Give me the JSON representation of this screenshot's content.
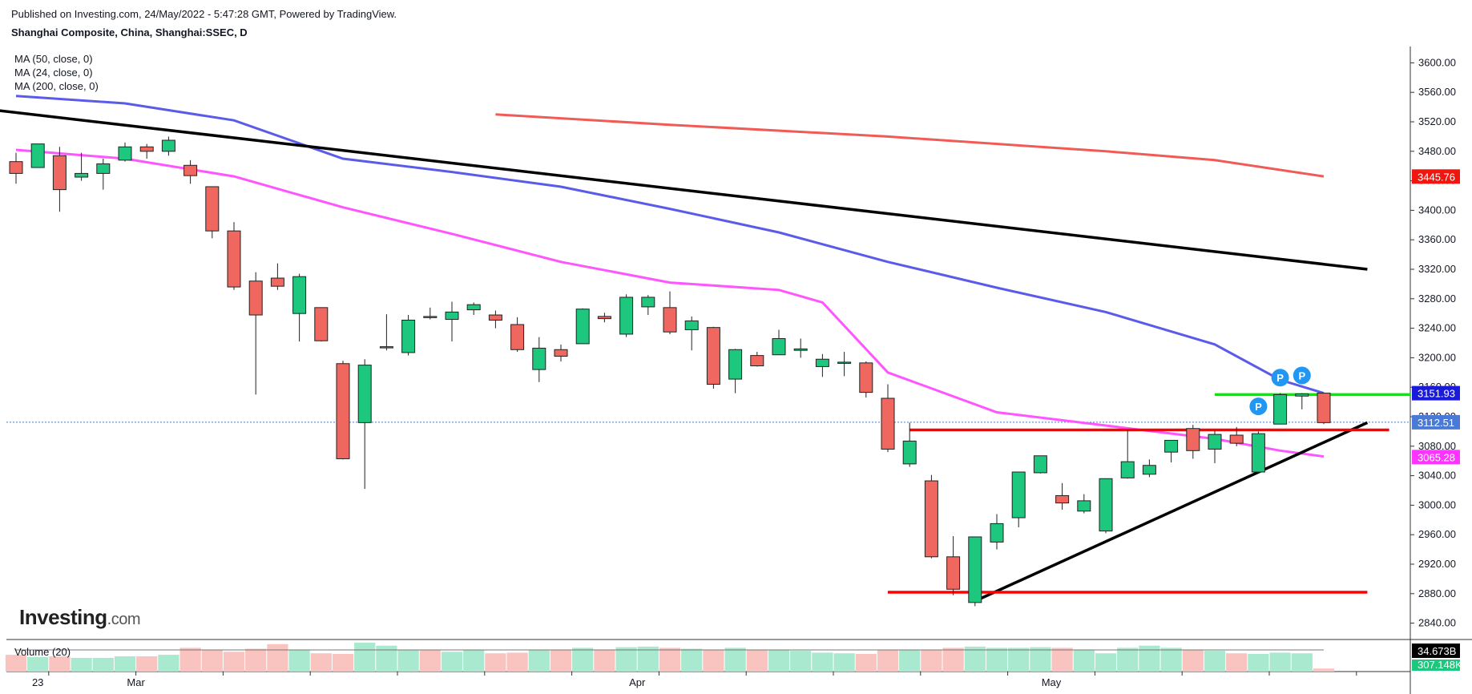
{
  "header": {
    "published": "Published on Investing.com, 24/May/2022 - 5:47:28 GMT, Powered by TradingView.",
    "symbol": "Shanghai Composite, China, Shanghai:SSEC, D"
  },
  "indicators": [
    {
      "label": "MA (50, close, 0)",
      "color": "#5b5bea"
    },
    {
      "label": "MA (24, close, 0)",
      "color": "#ff55ff"
    },
    {
      "label": "MA (200, close, 0)",
      "color": "#f05b55"
    }
  ],
  "logo": {
    "brand": "Investing",
    "suffix": ".com"
  },
  "colors": {
    "up": "#1dc77d",
    "down": "#f0675f",
    "volume_up": "#a8e9cf",
    "volume_down": "#f9c3c0",
    "trendline": "#000000",
    "support": "#ff0000",
    "resistance_green": "#00ee00",
    "marker": "#2196f3"
  },
  "chart_data": {
    "type": "candlestick",
    "title": "Shanghai Composite, China, Shanghai:SSEC, D",
    "ylim": [
      2820,
      3620
    ],
    "y_ticks": [
      2840,
      2880,
      2920,
      2960,
      3000,
      3040,
      3080,
      3120,
      3160,
      3200,
      3240,
      3280,
      3320,
      3360,
      3400,
      3440,
      3480,
      3520,
      3560,
      3600
    ],
    "x_labels": [
      {
        "label": "23",
        "index": 1
      },
      {
        "label": "Mar",
        "index": 5.5
      },
      {
        "label": "Apr",
        "index": 28.5
      },
      {
        "label": "May",
        "index": 47.5
      }
    ],
    "candles": [
      {
        "o": 3466,
        "h": 3478,
        "l": 3436,
        "c": 3450
      },
      {
        "o": 3458,
        "h": 3490,
        "l": 3458,
        "c": 3490
      },
      {
        "o": 3474,
        "h": 3486,
        "l": 3398,
        "c": 3428
      },
      {
        "o": 3445,
        "h": 3478,
        "l": 3440,
        "c": 3450
      },
      {
        "o": 3450,
        "h": 3470,
        "l": 3428,
        "c": 3463
      },
      {
        "o": 3468,
        "h": 3492,
        "l": 3466,
        "c": 3486
      },
      {
        "o": 3486,
        "h": 3490,
        "l": 3470,
        "c": 3480
      },
      {
        "o": 3480,
        "h": 3500,
        "l": 3474,
        "c": 3495
      },
      {
        "o": 3461,
        "h": 3468,
        "l": 3436,
        "c": 3447
      },
      {
        "o": 3432,
        "h": 3432,
        "l": 3362,
        "c": 3372
      },
      {
        "o": 3372,
        "h": 3384,
        "l": 3292,
        "c": 3296
      },
      {
        "o": 3304,
        "h": 3316,
        "l": 3150,
        "c": 3258
      },
      {
        "o": 3308,
        "h": 3328,
        "l": 3292,
        "c": 3297
      },
      {
        "o": 3260,
        "h": 3314,
        "l": 3222,
        "c": 3310
      },
      {
        "o": 3268,
        "h": 3268,
        "l": 3222,
        "c": 3223
      },
      {
        "o": 3192,
        "h": 3196,
        "l": 3062,
        "c": 3063
      },
      {
        "o": 3112,
        "h": 3198,
        "l": 3022,
        "c": 3190
      },
      {
        "o": 3215,
        "h": 3259,
        "l": 3210,
        "c": 3215
      },
      {
        "o": 3207,
        "h": 3258,
        "l": 3203,
        "c": 3251
      },
      {
        "o": 3256,
        "h": 3268,
        "l": 3252,
        "c": 3255
      },
      {
        "o": 3252,
        "h": 3276,
        "l": 3222,
        "c": 3262
      },
      {
        "o": 3265,
        "h": 3275,
        "l": 3258,
        "c": 3272
      },
      {
        "o": 3258,
        "h": 3264,
        "l": 3240,
        "c": 3251
      },
      {
        "o": 3245,
        "h": 3255,
        "l": 3208,
        "c": 3211
      },
      {
        "o": 3184,
        "h": 3228,
        "l": 3167,
        "c": 3213
      },
      {
        "o": 3211,
        "h": 3218,
        "l": 3195,
        "c": 3202
      },
      {
        "o": 3219,
        "h": 3267,
        "l": 3219,
        "c": 3266
      },
      {
        "o": 3256,
        "h": 3261,
        "l": 3248,
        "c": 3253
      },
      {
        "o": 3232,
        "h": 3286,
        "l": 3228,
        "c": 3282
      },
      {
        "o": 3269,
        "h": 3285,
        "l": 3258,
        "c": 3282
      },
      {
        "o": 3268,
        "h": 3290,
        "l": 3232,
        "c": 3235
      },
      {
        "o": 3238,
        "h": 3256,
        "l": 3210,
        "c": 3250
      },
      {
        "o": 3241,
        "h": 3242,
        "l": 3158,
        "c": 3164
      },
      {
        "o": 3171,
        "h": 3212,
        "l": 3152,
        "c": 3211
      },
      {
        "o": 3203,
        "h": 3208,
        "l": 3188,
        "c": 3189
      },
      {
        "o": 3204,
        "h": 3238,
        "l": 3204,
        "c": 3226
      },
      {
        "o": 3210,
        "h": 3226,
        "l": 3200,
        "c": 3212
      },
      {
        "o": 3188,
        "h": 3205,
        "l": 3174,
        "c": 3198
      },
      {
        "o": 3193,
        "h": 3208,
        "l": 3175,
        "c": 3194
      },
      {
        "o": 3193,
        "h": 3195,
        "l": 3146,
        "c": 3153
      },
      {
        "o": 3145,
        "h": 3164,
        "l": 3072,
        "c": 3076
      },
      {
        "o": 3056,
        "h": 3112,
        "l": 3052,
        "c": 3087
      },
      {
        "o": 3033,
        "h": 3041,
        "l": 2928,
        "c": 2930
      },
      {
        "o": 2930,
        "h": 2958,
        "l": 2878,
        "c": 2886
      },
      {
        "o": 2868,
        "h": 2957,
        "l": 2863,
        "c": 2957
      },
      {
        "o": 2950,
        "h": 2988,
        "l": 2940,
        "c": 2975
      },
      {
        "o": 2983,
        "h": 3045,
        "l": 2970,
        "c": 3045
      },
      {
        "o": 3044,
        "h": 3067,
        "l": 3043,
        "c": 3067
      },
      {
        "o": 3013,
        "h": 3030,
        "l": 2994,
        "c": 3003
      },
      {
        "o": 2992,
        "h": 3015,
        "l": 2989,
        "c": 3006
      },
      {
        "o": 2965,
        "h": 3036,
        "l": 2962,
        "c": 3036
      },
      {
        "o": 3037,
        "h": 3102,
        "l": 3036,
        "c": 3059
      },
      {
        "o": 3042,
        "h": 3062,
        "l": 3038,
        "c": 3054
      },
      {
        "o": 3072,
        "h": 3087,
        "l": 3058,
        "c": 3088
      },
      {
        "o": 3104,
        "h": 3109,
        "l": 3063,
        "c": 3074
      },
      {
        "o": 3076,
        "h": 3101,
        "l": 3057,
        "c": 3096
      },
      {
        "o": 3095,
        "h": 3106,
        "l": 3080,
        "c": 3084
      },
      {
        "o": 3045,
        "h": 3100,
        "l": 3044,
        "c": 3097
      },
      {
        "o": 3110,
        "h": 3152,
        "l": 3110,
        "c": 3150
      },
      {
        "o": 3148,
        "h": 3152,
        "l": 3130,
        "c": 3151
      },
      {
        "o": 3152,
        "h": 3152,
        "l": 3110,
        "c": 3112
      }
    ],
    "ma50": [
      [
        0,
        3555
      ],
      [
        5,
        3545
      ],
      [
        10,
        3522
      ],
      [
        15,
        3470
      ],
      [
        20,
        3452
      ],
      [
        25,
        3432
      ],
      [
        30,
        3402
      ],
      [
        35,
        3370
      ],
      [
        40,
        3330
      ],
      [
        45,
        3295
      ],
      [
        50,
        3262
      ],
      [
        55,
        3218
      ],
      [
        58,
        3170
      ],
      [
        60,
        3152
      ]
    ],
    "ma24": [
      [
        0,
        3482
      ],
      [
        5,
        3470
      ],
      [
        10,
        3446
      ],
      [
        15,
        3404
      ],
      [
        20,
        3368
      ],
      [
        25,
        3330
      ],
      [
        30,
        3302
      ],
      [
        35,
        3292
      ],
      [
        37,
        3275
      ],
      [
        40,
        3180
      ],
      [
        45,
        3126
      ],
      [
        50,
        3108
      ],
      [
        55,
        3090
      ],
      [
        58,
        3074
      ],
      [
        60,
        3066
      ]
    ],
    "ma200": [
      [
        22,
        3530
      ],
      [
        30,
        3516
      ],
      [
        40,
        3500
      ],
      [
        50,
        3480
      ],
      [
        55,
        3468
      ],
      [
        60,
        3446
      ]
    ],
    "lines": [
      {
        "kind": "trend",
        "from": [
          -1,
          3536
        ],
        "to": [
          62,
          3320
        ]
      },
      {
        "kind": "trend",
        "from": [
          44,
          2870
        ],
        "to": [
          62,
          3112
        ]
      },
      {
        "kind": "support",
        "from": [
          41,
          3102
        ],
        "to": [
          63,
          3102
        ]
      },
      {
        "kind": "support",
        "from": [
          40,
          2882
        ],
        "to": [
          62,
          2882
        ]
      },
      {
        "kind": "resistance",
        "from": [
          55,
          3150
        ],
        "to": [
          64,
          3150
        ]
      }
    ],
    "markers": [
      {
        "index": 57,
        "price": 3134,
        "label": "P"
      },
      {
        "index": 58,
        "price": 3173,
        "label": "P"
      },
      {
        "index": 59,
        "price": 3176,
        "label": "P"
      }
    ],
    "price_tags": [
      {
        "label": "3445.76",
        "price": 3445.76,
        "bg": "#f0160f"
      },
      {
        "label": "3151.93",
        "price": 3151.93,
        "bg": "#1a1adb"
      },
      {
        "label": "3112.51",
        "price": 3112.51,
        "bg": "#4a79d6"
      },
      {
        "label": "3065.28",
        "price": 3065.28,
        "bg": "#ff33ff"
      }
    ],
    "last_price": 3112.51,
    "volume": {
      "label": "Volume (20)",
      "current_label": "34.673B",
      "ma_label": "307.148K",
      "relative": [
        0.55,
        0.48,
        0.5,
        0.45,
        0.45,
        0.5,
        0.5,
        0.55,
        0.78,
        0.7,
        0.65,
        0.75,
        0.9,
        0.7,
        0.6,
        0.58,
        0.95,
        0.85,
        0.7,
        0.7,
        0.65,
        0.7,
        0.6,
        0.62,
        0.7,
        0.72,
        0.78,
        0.72,
        0.8,
        0.82,
        0.78,
        0.75,
        0.7,
        0.78,
        0.7,
        0.7,
        0.68,
        0.62,
        0.6,
        0.58,
        0.72,
        0.7,
        0.72,
        0.78,
        0.82,
        0.78,
        0.78,
        0.8,
        0.78,
        0.7,
        0.6,
        0.78,
        0.85,
        0.78,
        0.72,
        0.68,
        0.6,
        0.58,
        0.62,
        0.6,
        0.1
      ]
    }
  }
}
